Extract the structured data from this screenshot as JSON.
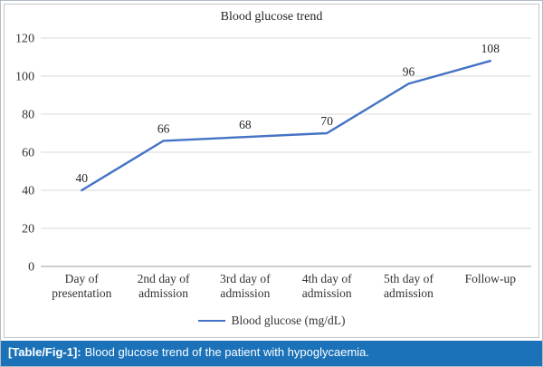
{
  "chart_data": {
    "type": "line",
    "title": "Blood glucose trend",
    "categories": [
      "Day of\npresentation",
      "2nd day of\nadmission",
      "3rd day of\nadmission",
      "4th day of\nadmission",
      "5th day of\nadmission",
      "Follow-up"
    ],
    "series": [
      {
        "name": "Blood glucose (mg/dL)",
        "values": [
          40,
          66,
          68,
          70,
          96,
          108
        ],
        "color": "#4472C4"
      }
    ],
    "ylim": [
      0,
      120
    ],
    "yticks": [
      0,
      20,
      40,
      60,
      80,
      100,
      120
    ],
    "grid": true,
    "legend_position": "bottom",
    "data_labels": true
  },
  "caption": {
    "label": "[Table/Fig-1]:",
    "text": "Blood glucose trend of the patient with hypoglycaemia.",
    "background": "#1b72b8"
  },
  "colors": {
    "line": "#4472C4",
    "gridline": "#d9d9d9",
    "zero_axis": "#9e9e9e",
    "axis_text": "#333333"
  }
}
